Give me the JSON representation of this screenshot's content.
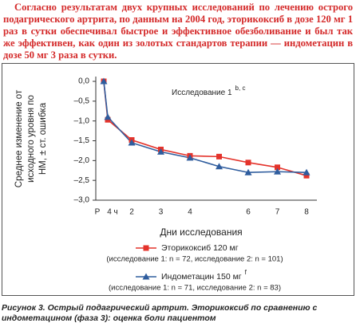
{
  "paragraph": "Согласно результатам двух крупных исследований по лечению острого подагрического артрита, по данным на 2004 год, эторикоксиб в дозе 120 мг 1 раз в сутки обеспечивал быстрое и эффективное обезболивание и был так же эффективен, как один из золотых стандартов терапии — индометацин в дозе 50 мг 3 раза в сутки.",
  "chart_data": {
    "type": "line",
    "annotation": {
      "text": "Исследование 1",
      "sup": "b, c"
    },
    "y_label": [
      "Среднее изменение от",
      "исходного уровня по",
      "НМ, ± ст. ошибка"
    ],
    "x_label": "Дни исследования",
    "categories": [
      "Р",
      "4 ч",
      "2",
      "3",
      "4",
      null,
      "6",
      "7",
      "8"
    ],
    "ylim": [
      0,
      -3
    ],
    "yticks": [
      {
        "value": 0,
        "label": "0,0"
      },
      {
        "value": -0.5,
        "label": "–0,5"
      },
      {
        "value": -1,
        "label": "–1,0"
      },
      {
        "value": -1.5,
        "label": "–1,5"
      },
      {
        "value": -2,
        "label": "–2,0"
      },
      {
        "value": -2.5,
        "label": "–2,5"
      },
      {
        "value": -3,
        "label": "–3,0"
      }
    ],
    "series": [
      {
        "name": "Эторикоксиб 120 мг",
        "note": "(исследование 1: n = 72, исследование 2: n = 101)",
        "color": "#e4332b",
        "marker": "square",
        "values": [
          0,
          -0.97,
          -1.48,
          -1.72,
          -1.88,
          -1.9,
          -2.05,
          -2.17,
          -2.38
        ]
      },
      {
        "name": "Индометацин 150 мг",
        "sup": "f",
        "note": "(исследование 1: n = 71, исследование 2: n = 83)",
        "color": "#2f5d9e",
        "marker": "triangle",
        "values": [
          0,
          -0.9,
          -1.55,
          -1.78,
          -1.93,
          -2.15,
          -2.3,
          -2.28,
          -2.3
        ]
      }
    ]
  },
  "caption": "Рисунок 3. Острый подагрический артрит. Эторикоксиб по сравнению с индометацином (фаза 3): оценка боли пациентом"
}
